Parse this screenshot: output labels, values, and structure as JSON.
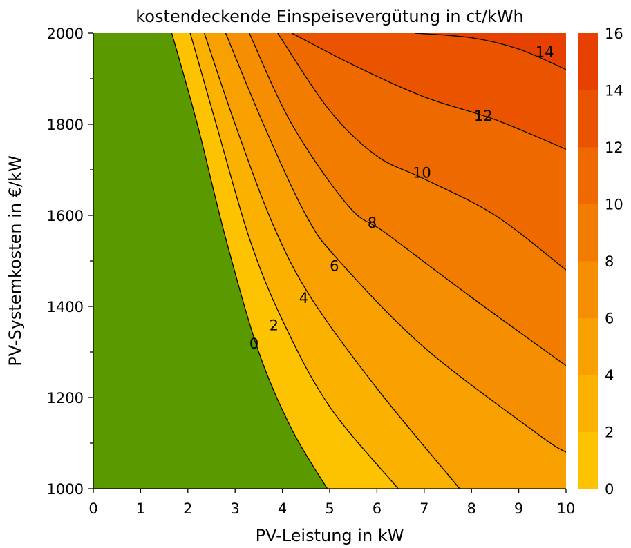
{
  "chart_data": {
    "type": "contour",
    "title": "kostendeckende Einspeisevergütung in ct/kWh",
    "xlabel": "PV-Leistung in kW",
    "ylabel": "PV-Systemkosten in €/kW",
    "xlim": [
      0,
      10
    ],
    "ylim": [
      1000,
      2000
    ],
    "xticks": [
      0,
      1,
      2,
      3,
      4,
      5,
      6,
      7,
      8,
      9,
      10
    ],
    "yticks": [
      1000,
      1200,
      1400,
      1600,
      1800,
      2000
    ],
    "grid": false,
    "contour_levels": [
      0,
      2,
      4,
      6,
      8,
      10,
      12,
      14,
      16
    ],
    "contour_lines": [
      {
        "level": 0,
        "points": [
          [
            1.66,
            2000
          ],
          [
            2.2,
            1800
          ],
          [
            2.8,
            1550
          ],
          [
            3.5,
            1300
          ],
          [
            4.2,
            1130
          ],
          [
            4.95,
            1000
          ]
        ]
      },
      {
        "level": 2,
        "points": [
          [
            2.05,
            2000
          ],
          [
            2.6,
            1800
          ],
          [
            3.3,
            1550
          ],
          [
            4.0,
            1370
          ],
          [
            5.0,
            1180
          ],
          [
            6.45,
            1000
          ]
        ]
      },
      {
        "level": 4,
        "points": [
          [
            2.35,
            2000
          ],
          [
            3.0,
            1800
          ],
          [
            3.8,
            1580
          ],
          [
            4.6,
            1420
          ],
          [
            6.0,
            1220
          ],
          [
            7.75,
            1000
          ]
        ]
      },
      {
        "level": 6,
        "points": [
          [
            2.8,
            2000
          ],
          [
            3.6,
            1800
          ],
          [
            4.5,
            1600
          ],
          [
            5.2,
            1500
          ],
          [
            7.0,
            1310
          ],
          [
            9.4,
            1120
          ],
          [
            10.0,
            1080
          ]
        ]
      },
      {
        "level": 8,
        "points": [
          [
            3.3,
            2000
          ],
          [
            4.2,
            1800
          ],
          [
            5.4,
            1620
          ],
          [
            6.2,
            1560
          ],
          [
            8.0,
            1420
          ],
          [
            10.0,
            1270
          ]
        ]
      },
      {
        "level": 10,
        "points": [
          [
            3.9,
            2000
          ],
          [
            5.0,
            1830
          ],
          [
            6.0,
            1730
          ],
          [
            7.0,
            1680
          ],
          [
            8.5,
            1600
          ],
          [
            10.0,
            1480
          ]
        ]
      },
      {
        "level": 12,
        "points": [
          [
            4.2,
            2000
          ],
          [
            5.5,
            1930
          ],
          [
            7.0,
            1860
          ],
          [
            8.5,
            1810
          ],
          [
            10.0,
            1745
          ]
        ]
      },
      {
        "level": 14,
        "points": [
          [
            6.8,
            2000
          ],
          [
            8.0,
            1990
          ],
          [
            9.0,
            1965
          ],
          [
            10.0,
            1920
          ]
        ]
      }
    ],
    "contour_labels": [
      {
        "text": "0",
        "x": 3.4,
        "y": 1320
      },
      {
        "text": "2",
        "x": 3.82,
        "y": 1360
      },
      {
        "text": "4",
        "x": 4.45,
        "y": 1420
      },
      {
        "text": "6",
        "x": 5.1,
        "y": 1490
      },
      {
        "text": "8",
        "x": 5.9,
        "y": 1585
      },
      {
        "text": "10",
        "x": 6.95,
        "y": 1695
      },
      {
        "text": "12",
        "x": 8.25,
        "y": 1820
      },
      {
        "text": "14",
        "x": 9.55,
        "y": 1960
      }
    ],
    "fill_colors": [
      "#5a9a00",
      "#fdc300",
      "#fbb100",
      "#f8a000",
      "#f58e00",
      "#f27c00",
      "#ee6900",
      "#ea5400",
      "#e64100"
    ],
    "colorbar": {
      "ticks": [
        0,
        2,
        4,
        6,
        8,
        10,
        12,
        14,
        16
      ],
      "colors": [
        "#fdc300",
        "#fbb100",
        "#f8a000",
        "#f58e00",
        "#f27c00",
        "#ee6900",
        "#ea5400",
        "#e64100"
      ]
    }
  }
}
